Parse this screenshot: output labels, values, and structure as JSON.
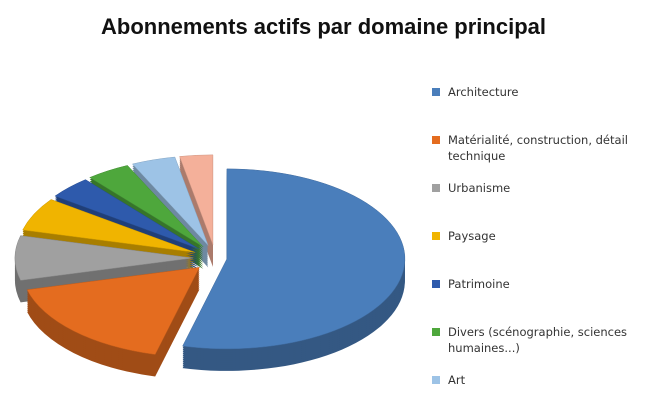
{
  "chart_data": {
    "type": "pie",
    "title": "Abonnements actifs par domaine principal",
    "categories": [
      "Architecture",
      "Matérialité, construction, détail technique",
      "Urbanisme",
      "Paysage",
      "Patrimoine",
      "Divers (scénographie, sciences humaines...)",
      "Art",
      null
    ],
    "values": [
      54,
      17,
      8,
      6,
      4,
      4,
      4,
      3
    ],
    "colors": [
      "#4a7ebb",
      "#e46c1f",
      "#a0a0a0",
      "#f0b400",
      "#2e5aac",
      "#4ea73c",
      "#9dc3e6",
      "#f4b09a"
    ],
    "legend": "right"
  }
}
